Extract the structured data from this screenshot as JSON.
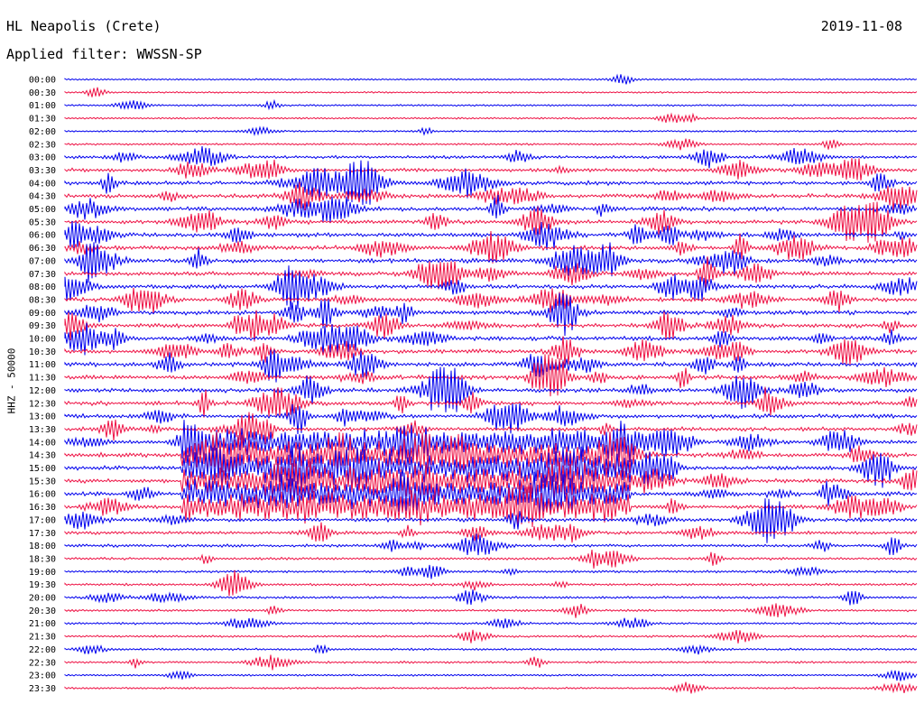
{
  "header": {
    "station": "HL Neapolis (Crete)",
    "date": "2019-11-08",
    "filter": "Applied filter: WWSSN-SP"
  },
  "chart_data": {
    "type": "line",
    "ylabel": "HHZ - 50000",
    "colors": {
      "even_hour": "#0000ee",
      "odd_hour": "#ee1144"
    },
    "rows": [
      "00:00",
      "00:30",
      "01:00",
      "01:30",
      "02:00",
      "02:30",
      "03:00",
      "03:30",
      "04:00",
      "04:30",
      "05:00",
      "05:30",
      "06:00",
      "06:30",
      "07:00",
      "07:30",
      "08:00",
      "08:30",
      "09:00",
      "09:30",
      "10:00",
      "10:30",
      "11:00",
      "11:30",
      "12:00",
      "12:30",
      "13:00",
      "13:30",
      "14:00",
      "14:30",
      "15:00",
      "15:30",
      "16:00",
      "16:30",
      "17:00",
      "17:30",
      "18:00",
      "18:30",
      "19:00",
      "19:30",
      "20:00",
      "20:30",
      "21:00",
      "21:30",
      "22:00",
      "22:30",
      "23:00",
      "23:30"
    ],
    "noise_level": [
      0.15,
      0.15,
      0.18,
      0.2,
      0.2,
      0.25,
      0.55,
      0.75,
      0.85,
      0.9,
      0.95,
      0.95,
      0.95,
      0.95,
      0.95,
      0.95,
      0.95,
      0.95,
      0.95,
      0.95,
      0.95,
      0.95,
      0.95,
      0.95,
      0.95,
      0.95,
      0.9,
      0.9,
      0.9,
      0.95,
      0.95,
      0.95,
      0.95,
      0.9,
      0.8,
      0.7,
      0.55,
      0.45,
      0.4,
      0.4,
      0.4,
      0.35,
      0.3,
      0.3,
      0.3,
      0.3,
      0.25,
      0.25
    ]
  }
}
